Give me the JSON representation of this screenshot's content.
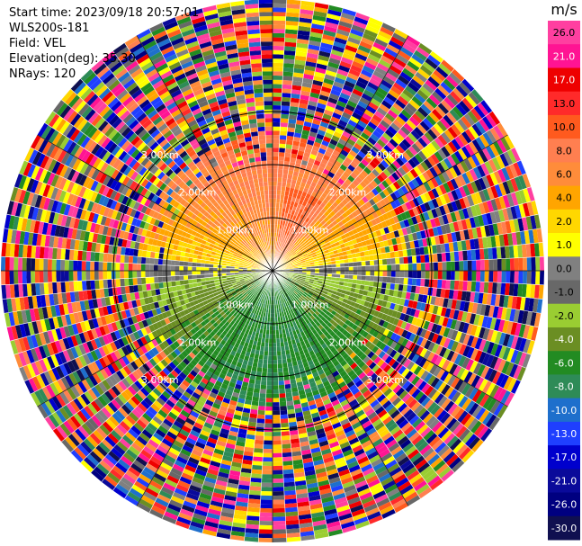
{
  "info": {
    "start_time": "Start time: 2023/09/18 20:57:01",
    "station": "WLS200s-181",
    "field": "Field: VEL",
    "elevation": "Elevation(deg): 35.30",
    "nrays": "NRays: 120"
  },
  "chart_data": {
    "type": "heatmap",
    "projection": "polar-ppi",
    "field": "VEL",
    "units": "m/s",
    "n_rays": 120,
    "range_rings_km": [
      1.0,
      2.0,
      3.0
    ],
    "ring_labels": [
      "1.00km",
      "2.00km",
      "3.00km"
    ],
    "colorbar": {
      "title": "m/s",
      "ticks": [
        "26.0",
        "21.0",
        "17.0",
        "13.0",
        "10.0",
        "8.0",
        "6.0",
        "4.0",
        "2.0",
        "1.0",
        "0.0",
        "-1.0",
        "-2.0",
        "-4.0",
        "-6.0",
        "-8.0",
        "-10.0",
        "-13.0",
        "-17.0",
        "-21.0",
        "-26.0",
        "-30.0"
      ],
      "colors": [
        "#ff3fa0",
        "#ff1493",
        "#ee0000",
        "#ff2a2a",
        "#ff5a1e",
        "#ff7f50",
        "#ff8c3a",
        "#ffa500",
        "#ffd700",
        "#ffff00",
        "#808080",
        "#686868",
        "#9acd32",
        "#6b8e23",
        "#228b22",
        "#2e8b57",
        "#1e6fcc",
        "#1f3fff",
        "#0000cd",
        "#0a0a9a",
        "#000080",
        "#101050"
      ]
    },
    "pattern": {
      "near_field_north": "positive velocities 1–8 m/s (yellow/orange), ~10 m/s maxima northeast",
      "near_field_south": "negative velocities -2 to -8 m/s (green)",
      "transition_band": "near 0 m/s (gray) along the east–west line",
      "far_field": "noise beyond ~2.5 km"
    }
  }
}
